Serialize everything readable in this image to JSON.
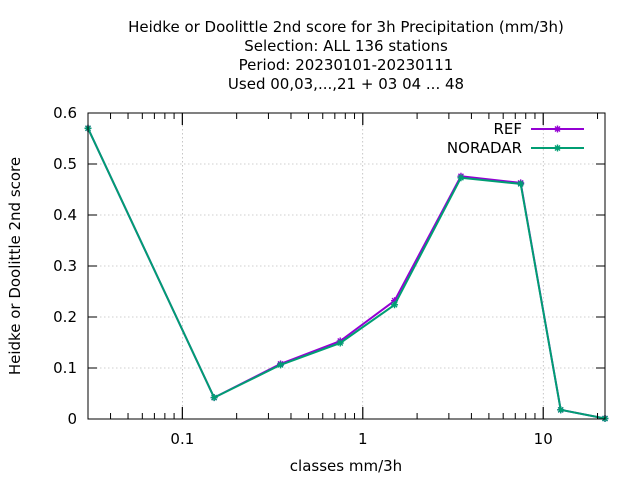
{
  "chart_data": {
    "type": "line",
    "title_lines": [
      "Heidke or Doolittle 2nd score  for 3h Precipitation (mm/3h)",
      "Selection: ALL    136 stations",
      "Period: 20230101-20230111",
      "Used  00,03,...,21  + 03 04 ... 48"
    ],
    "xlabel": "classes mm/3h",
    "ylabel": "Heidke or Doolittle 2nd score",
    "x_scale": "log",
    "xlim": [
      0.03,
      22
    ],
    "ylim": [
      0,
      0.6
    ],
    "x_ticks": [
      {
        "value": 0.1,
        "label": "0.1"
      },
      {
        "value": 1,
        "label": "1"
      },
      {
        "value": 10,
        "label": "10"
      }
    ],
    "y_ticks": [
      {
        "value": 0,
        "label": "0"
      },
      {
        "value": 0.1,
        "label": "0.1"
      },
      {
        "value": 0.2,
        "label": "0.2"
      },
      {
        "value": 0.3,
        "label": "0.3"
      },
      {
        "value": 0.4,
        "label": "0.4"
      },
      {
        "value": 0.5,
        "label": "0.5"
      },
      {
        "value": 0.6,
        "label": "0.6"
      }
    ],
    "grid": true,
    "legend_position": "top-right",
    "x": [
      0.03,
      0.15,
      0.35,
      0.75,
      1.5,
      3.5,
      7.5,
      12.5,
      22
    ],
    "series": [
      {
        "name": "REF",
        "color": "#9400d3",
        "values": [
          0.57,
          0.042,
          0.108,
          0.153,
          0.232,
          0.476,
          0.463,
          0.018,
          0.001
        ]
      },
      {
        "name": "NORADAR",
        "color": "#009e73",
        "values": [
          0.57,
          0.042,
          0.106,
          0.149,
          0.224,
          0.473,
          0.461,
          0.018,
          0.001
        ]
      }
    ]
  }
}
